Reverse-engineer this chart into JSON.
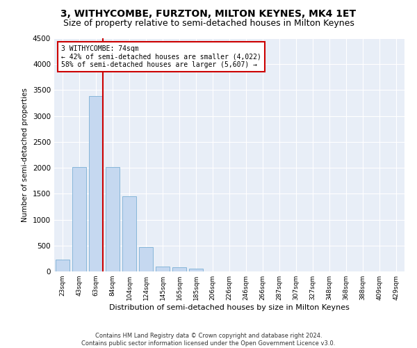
{
  "title": "3, WITHYCOMBE, FURZTON, MILTON KEYNES, MK4 1ET",
  "subtitle": "Size of property relative to semi-detached houses in Milton Keynes",
  "xlabel": "Distribution of semi-detached houses by size in Milton Keynes",
  "ylabel": "Number of semi-detached properties",
  "categories": [
    "23sqm",
    "43sqm",
    "63sqm",
    "84sqm",
    "104sqm",
    "124sqm",
    "145sqm",
    "165sqm",
    "185sqm",
    "206sqm",
    "226sqm",
    "246sqm",
    "266sqm",
    "287sqm",
    "307sqm",
    "327sqm",
    "348sqm",
    "368sqm",
    "388sqm",
    "409sqm",
    "429sqm"
  ],
  "values": [
    230,
    2020,
    3380,
    2010,
    1450,
    470,
    100,
    80,
    60,
    0,
    0,
    0,
    0,
    0,
    0,
    0,
    0,
    0,
    0,
    0,
    0
  ],
  "bar_color": "#c5d8f0",
  "bar_edge_color": "#7aafd4",
  "vline_color": "#cc0000",
  "annotation_text": "3 WITHYCOMBE: 74sqm\n← 42% of semi-detached houses are smaller (4,022)\n58% of semi-detached houses are larger (5,607) →",
  "annotation_box_color": "#ffffff",
  "annotation_box_edge": "#cc0000",
  "ylim": [
    0,
    4500
  ],
  "yticks": [
    0,
    500,
    1000,
    1500,
    2000,
    2500,
    3000,
    3500,
    4000,
    4500
  ],
  "background_color": "#e8eef7",
  "footer_line1": "Contains HM Land Registry data © Crown copyright and database right 2024.",
  "footer_line2": "Contains public sector information licensed under the Open Government Licence v3.0.",
  "title_fontsize": 10,
  "subtitle_fontsize": 9
}
